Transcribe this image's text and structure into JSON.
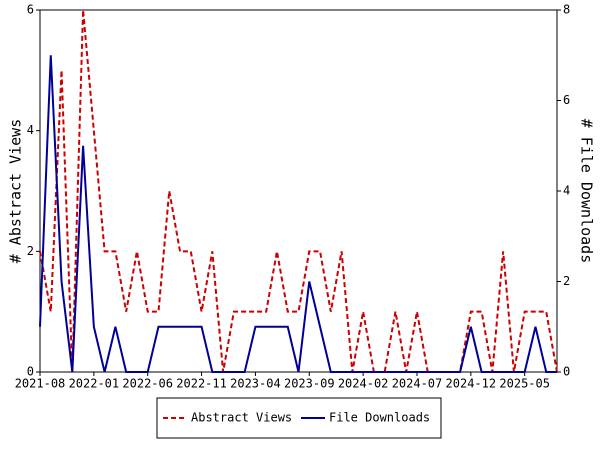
{
  "chart_data": {
    "type": "line",
    "categories": [
      "2021-08",
      null,
      null,
      null,
      null,
      "2022-01",
      null,
      null,
      null,
      null,
      "2022-06",
      null,
      null,
      null,
      null,
      "2022-11",
      null,
      null,
      null,
      null,
      "2023-04",
      null,
      null,
      null,
      null,
      "2023-09",
      null,
      null,
      null,
      null,
      "2024-02",
      null,
      null,
      null,
      null,
      "2024-07",
      null,
      null,
      null,
      null,
      "2024-12",
      null,
      null,
      null,
      null,
      "2025-05",
      null,
      null,
      null
    ],
    "ylabel": "# Abstract Views",
    "y2label": "# File Downloads",
    "ylim": [
      0,
      6
    ],
    "yticks": [
      0,
      2,
      4,
      6
    ],
    "y2lim": [
      0,
      8
    ],
    "y2ticks": [
      0,
      2,
      4,
      6,
      8
    ],
    "series": [
      {
        "name": "Abstract Views",
        "color": "#cc0000",
        "dash": true,
        "values": [
          2,
          1,
          5,
          0,
          6,
          4,
          2,
          2,
          1,
          2,
          1,
          1,
          3,
          2,
          2,
          1,
          2,
          0,
          1,
          1,
          1,
          1,
          2,
          1,
          1,
          2,
          2,
          1,
          2,
          0,
          1,
          0,
          0,
          1,
          0,
          1,
          0,
          0,
          0,
          0,
          1,
          1,
          0,
          2,
          0,
          1,
          1,
          1,
          0
        ]
      },
      {
        "name": "File Downloads",
        "color": "#000099",
        "axis": "y2",
        "values": [
          1,
          7,
          2,
          0,
          5,
          1,
          0,
          1,
          0,
          0,
          0,
          1,
          1,
          1,
          1,
          1,
          0,
          0,
          0,
          0,
          1,
          1,
          1,
          1,
          0,
          2,
          1,
          0,
          0,
          0,
          0,
          0,
          0,
          0,
          0,
          0,
          0,
          0,
          0,
          0,
          1,
          0,
          0,
          0,
          0,
          0,
          1,
          0,
          0
        ]
      }
    ]
  }
}
